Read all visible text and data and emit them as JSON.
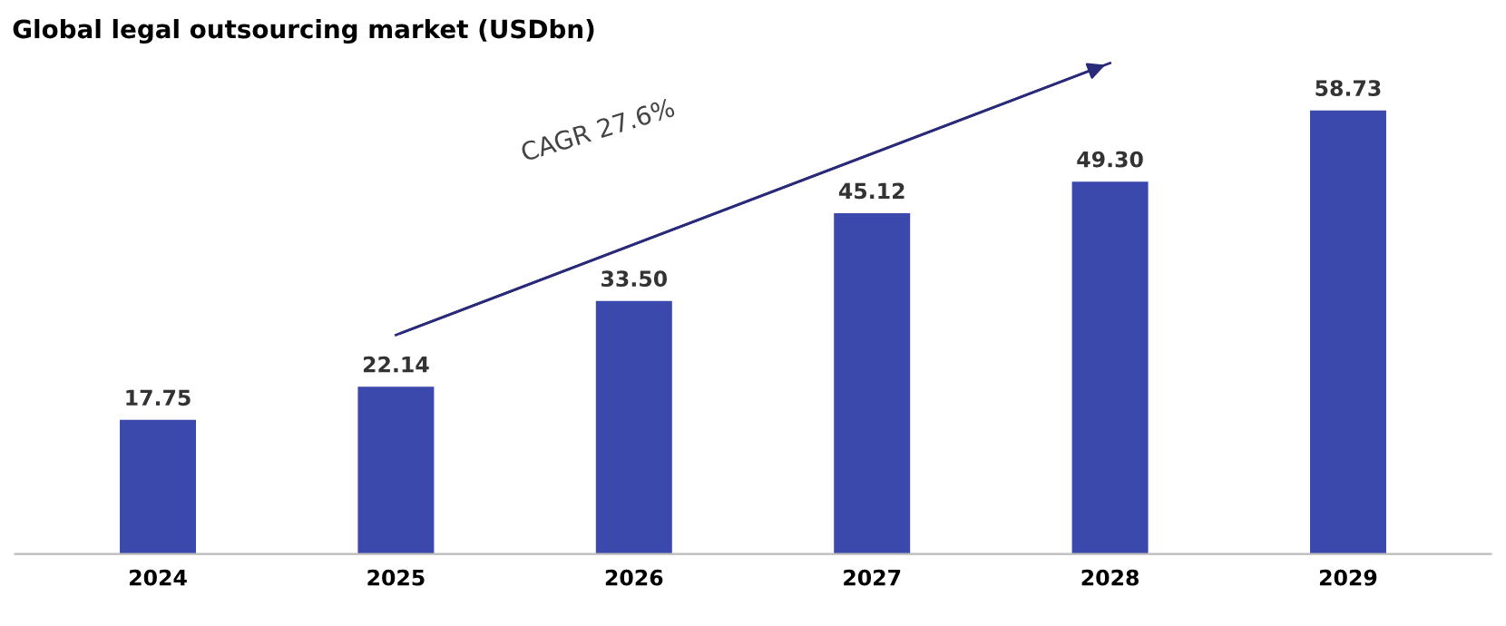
{
  "chart_data": {
    "type": "bar",
    "title": "Global legal outsourcing market (USDbn)",
    "categories": [
      "2024",
      "2025",
      "2026",
      "2027",
      "2028",
      "2029"
    ],
    "series": [
      {
        "color": "#3a49ab",
        "values": [
          17.75,
          22.14,
          33.5,
          45.12,
          49.3,
          58.73
        ],
        "value_labels": [
          "17.75",
          "22.14",
          "33.50",
          "45.12",
          "49.30",
          "58.73"
        ]
      },
      {
        "type": "line",
        "color": "#2a2a7a",
        "values": [
          null,
          29,
          null,
          null,
          65,
          null
        ]
      }
    ],
    "annotations": [
      "CAGR 27.6%"
    ],
    "grid": false,
    "legend": false
  }
}
